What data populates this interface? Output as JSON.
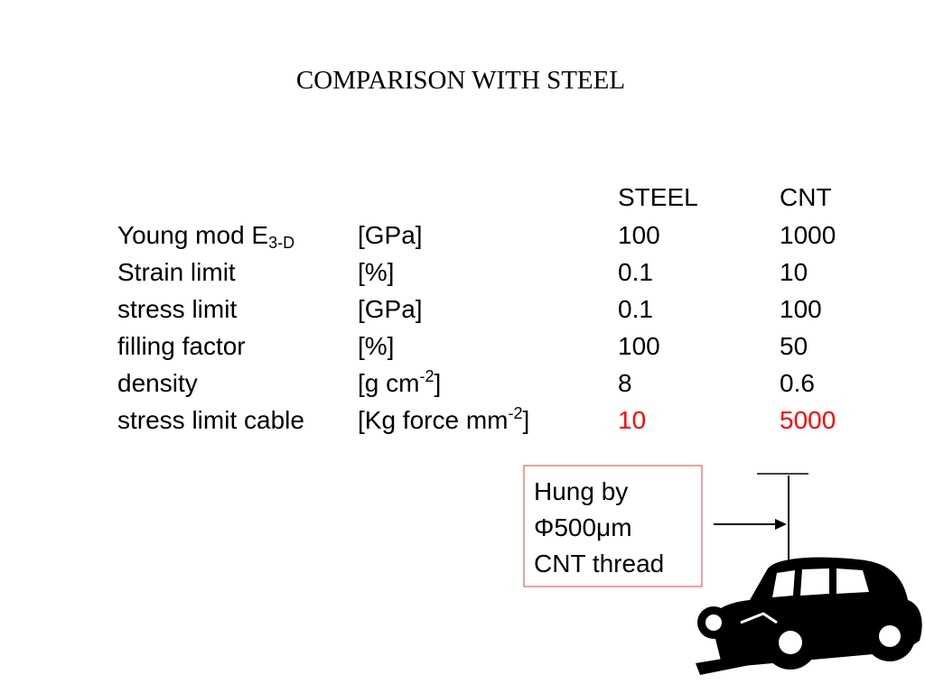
{
  "title": "COMPARISON WITH STEEL",
  "table": {
    "columns": [
      "STEEL",
      "CNT"
    ],
    "rows": [
      {
        "label": [
          {
            "t": "Young mod E"
          },
          {
            "sub": "3-D"
          }
        ],
        "unit": [
          {
            "t": "[GPa]"
          }
        ],
        "values": [
          "100",
          "1000"
        ]
      },
      {
        "label": [
          {
            "t": "Strain limit"
          }
        ],
        "unit": [
          {
            "t": "[%]"
          }
        ],
        "values": [
          "0.1",
          "10"
        ]
      },
      {
        "label": [
          {
            "t": "stress limit"
          }
        ],
        "unit": [
          {
            "t": "[GPa]"
          }
        ],
        "values": [
          "0.1",
          "100"
        ]
      },
      {
        "label": [
          {
            "t": "filling factor"
          }
        ],
        "unit": [
          {
            "t": "[%]"
          }
        ],
        "values": [
          "100",
          "50"
        ]
      },
      {
        "label": [
          {
            "t": "density"
          }
        ],
        "unit": [
          {
            "t": "[g cm"
          },
          {
            "sup": "-2"
          },
          {
            "t": "]"
          }
        ],
        "values": [
          "8",
          "0.6"
        ]
      },
      {
        "label": [
          {
            "t": "stress limit cable"
          }
        ],
        "unit": [
          {
            "t": "[Kg force mm"
          },
          {
            "sup": "-2"
          },
          {
            "t": "]"
          }
        ],
        "values": [
          "10",
          "5000"
        ],
        "color": "#ff0000"
      }
    ]
  },
  "callout": {
    "lines": [
      "Hung by",
      "Φ500μm",
      "CNT thread"
    ]
  }
}
